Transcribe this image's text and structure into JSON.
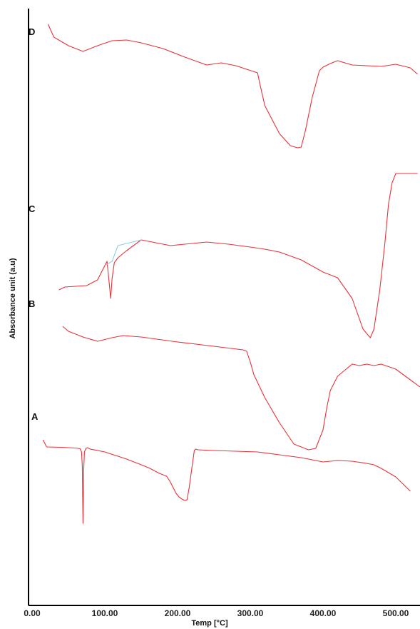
{
  "chart_data": {
    "type": "line",
    "xlabel": "Temp  [°C]",
    "ylabel": "Absorbance unit (a.u)",
    "xlim": [
      -5,
      540
    ],
    "x_ticks": [
      "0.00",
      "100.00",
      "200.00",
      "300.00",
      "400.00",
      "500.00"
    ],
    "x_tick_values": [
      0,
      100,
      200,
      300,
      400,
      500
    ],
    "yaxis_ticks_shown": false,
    "grid": false,
    "line_color": "#e8323a",
    "baseline_color": "#8fd0e0",
    "series": [
      {
        "name": "A",
        "x": [
          15,
          20,
          40,
          60,
          66,
          68,
          69,
          70,
          71,
          72,
          74,
          76,
          80,
          100,
          130,
          160,
          175,
          185,
          190,
          195,
          198,
          202,
          206,
          210,
          213,
          216,
          220,
          223,
          225,
          228,
          250,
          280,
          310,
          340,
          370,
          400,
          420,
          440,
          460,
          470,
          480,
          500,
          510,
          520
        ],
        "y": [
          17,
          7,
          6.5,
          5.5,
          4.5,
          0,
          -20,
          -100,
          -25,
          0,
          5,
          6,
          4,
          0,
          -10,
          -22,
          -30,
          -34,
          -42,
          -52,
          -58,
          -63,
          -66,
          -68,
          -67,
          -50,
          -20,
          2,
          4,
          3,
          2,
          1,
          0,
          -4,
          -8,
          -14,
          -12,
          -13,
          -16,
          -18,
          -23,
          -35,
          -45,
          -55
        ]
      },
      {
        "name": "B",
        "x": [
          42,
          50,
          70,
          90,
          110,
          125,
          150,
          200,
          250,
          290,
          295,
          300,
          305,
          320,
          340,
          360,
          380,
          390,
          400,
          405,
          410,
          420,
          440,
          450,
          460,
          470,
          480,
          500,
          520,
          540
        ],
        "y": [
          -5,
          -12,
          -20,
          -26,
          -21,
          -18,
          -20,
          -27,
          -33,
          -38,
          -40,
          -55,
          -73,
          -105,
          -140,
          -170,
          -178,
          -176,
          -150,
          -120,
          -95,
          -75,
          -58,
          -60,
          -58,
          -60,
          -58,
          -65,
          -80,
          -95
        ]
      },
      {
        "name": "C",
        "x": [
          37,
          45,
          60,
          75,
          90,
          100,
          103,
          106,
          108,
          110,
          113,
          118,
          130,
          150,
          170,
          190,
          210,
          240,
          270,
          300,
          320,
          340,
          370,
          400,
          420,
          440,
          455,
          465,
          470,
          478,
          485,
          490,
          495,
          500,
          515,
          530
        ],
        "y": [
          -60,
          -56,
          -55,
          -54,
          -46,
          -26,
          -20,
          -50,
          -72,
          -44,
          -22,
          -15,
          -5,
          10,
          6,
          2,
          4,
          7,
          4,
          0,
          -3,
          -7,
          -18,
          -35,
          -43,
          -72,
          -115,
          -127,
          -115,
          -60,
          5,
          60,
          90,
          103,
          103,
          103
        ]
      },
      {
        "name": "D",
        "x": [
          22,
          30,
          50,
          70,
          90,
          110,
          130,
          150,
          180,
          210,
          240,
          260,
          280,
          310,
          313,
          320,
          340,
          355,
          365,
          370,
          376,
          385,
          395,
          400,
          410,
          420,
          440,
          460,
          480,
          500,
          520,
          530
        ],
        "y": [
          78,
          60,
          48,
          40,
          48,
          55,
          56,
          52,
          44,
          32,
          21,
          24,
          20,
          10,
          -5,
          -36,
          -75,
          -92,
          -95,
          -94,
          -70,
          -25,
          13,
          18,
          23,
          27,
          21,
          20,
          19,
          22,
          17,
          8
        ]
      }
    ],
    "labels": [
      "A",
      "B",
      "C",
      "D"
    ]
  }
}
